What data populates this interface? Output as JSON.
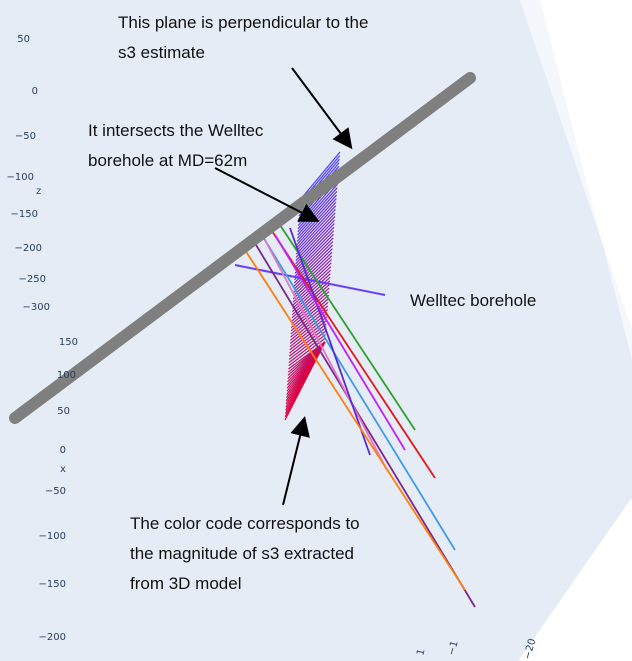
{
  "axes": {
    "z": {
      "label": "z",
      "ticks": [
        "50",
        "0",
        "−50",
        "−100",
        "−150",
        "−200",
        "−250",
        "−300"
      ]
    },
    "x": {
      "label": "x",
      "ticks": [
        "150",
        "100",
        "50",
        "0",
        "−50",
        "−100",
        "−150",
        "−200"
      ]
    },
    "y": {
      "ticks": [
        "1",
        "−1",
        "−20"
      ]
    }
  },
  "annotations": [
    {
      "lines": [
        "This plane is perpendicular to the",
        "s3 estimate"
      ]
    },
    {
      "lines": [
        "It intersects the Welltec",
        "borehole at MD=62m"
      ]
    },
    {
      "lines": [
        "Welltec borehole"
      ]
    },
    {
      "lines": [
        "The color code corresponds to",
        "the magnitude of s3 extracted",
        "from 3D model"
      ]
    }
  ]
}
